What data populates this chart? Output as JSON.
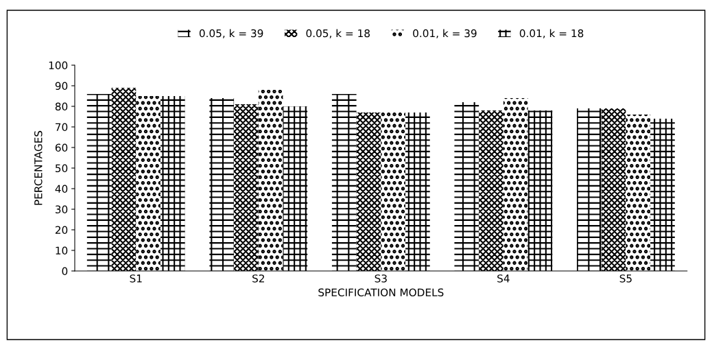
{
  "chart_data": {
    "type": "bar",
    "xlabel": "SPECIFICATION MODELS",
    "ylabel": "PERCENTAGES",
    "categories": [
      "S1",
      "S2",
      "S3",
      "S4",
      "S5"
    ],
    "series": [
      {
        "name": "0.05, k = 39",
        "color": "#ffffff",
        "values": [
          86,
          84,
          86,
          82,
          79
        ]
      },
      {
        "name": "0.05, k = 18",
        "color": "#ffffff",
        "values": [
          89,
          81,
          77,
          78,
          79
        ]
      },
      {
        "name": "0.01, k = 39",
        "color": "#ffffff",
        "values": [
          85,
          88,
          78,
          84,
          76
        ]
      },
      {
        "name": "0.01, k = 18",
        "color": "#ffffff",
        "values": [
          85,
          80,
          77,
          78,
          74
        ]
      }
    ],
    "ylim": [
      0,
      100
    ],
    "yticks": [
      0,
      10,
      20,
      30,
      40,
      50,
      60,
      70,
      80,
      90,
      100
    ],
    "grid": false,
    "legend": "top"
  }
}
